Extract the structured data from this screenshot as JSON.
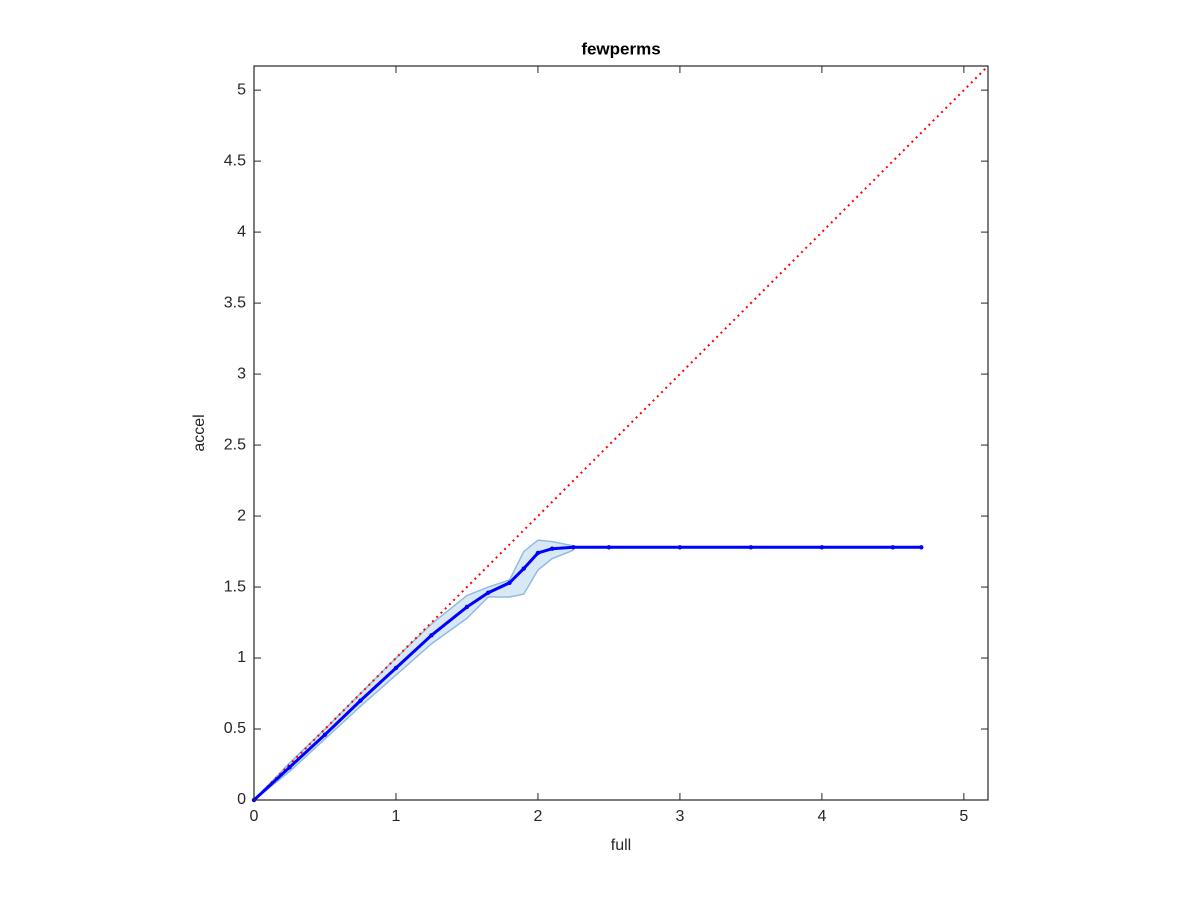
{
  "chart_data": {
    "type": "line",
    "title": "fewperms",
    "x_label": "full",
    "y_label": "accel",
    "xlim": [
      0,
      5.17
    ],
    "ylim": [
      0,
      5.17
    ],
    "xticks": [
      0,
      1,
      2,
      3,
      4,
      5
    ],
    "yticks": [
      0,
      0.5,
      1,
      1.5,
      2,
      2.5,
      3,
      3.5,
      4,
      4.5,
      5
    ],
    "series": [
      {
        "color": "#0000ff",
        "x": [
          0,
          0.25,
          0.5,
          0.75,
          1,
          1.25,
          1.5,
          1.65,
          1.8,
          1.9,
          2.0,
          2.1,
          2.25,
          2.5,
          3,
          3.5,
          4,
          4.5,
          4.7
        ],
        "values": [
          0,
          0.23,
          0.46,
          0.7,
          0.93,
          1.16,
          1.36,
          1.46,
          1.53,
          1.63,
          1.74,
          1.77,
          1.78,
          1.78,
          1.78,
          1.78,
          1.78,
          1.78,
          1.78
        ]
      }
    ],
    "band": {
      "color": "#8fbde0",
      "x": [
        0,
        0.25,
        0.5,
        0.75,
        1,
        1.25,
        1.5,
        1.65,
        1.8,
        1.9,
        2.0,
        2.1,
        2.25
      ],
      "upper": [
        0,
        0.26,
        0.5,
        0.75,
        1.0,
        1.24,
        1.44,
        1.5,
        1.55,
        1.75,
        1.83,
        1.82,
        1.79
      ],
      "lower": [
        0,
        0.2,
        0.43,
        0.66,
        0.88,
        1.1,
        1.28,
        1.43,
        1.43,
        1.45,
        1.62,
        1.7,
        1.76
      ]
    },
    "reference_line": {
      "color": "#ff0000",
      "x": [
        0,
        5.17
      ],
      "y": [
        0,
        5.17
      ]
    }
  }
}
